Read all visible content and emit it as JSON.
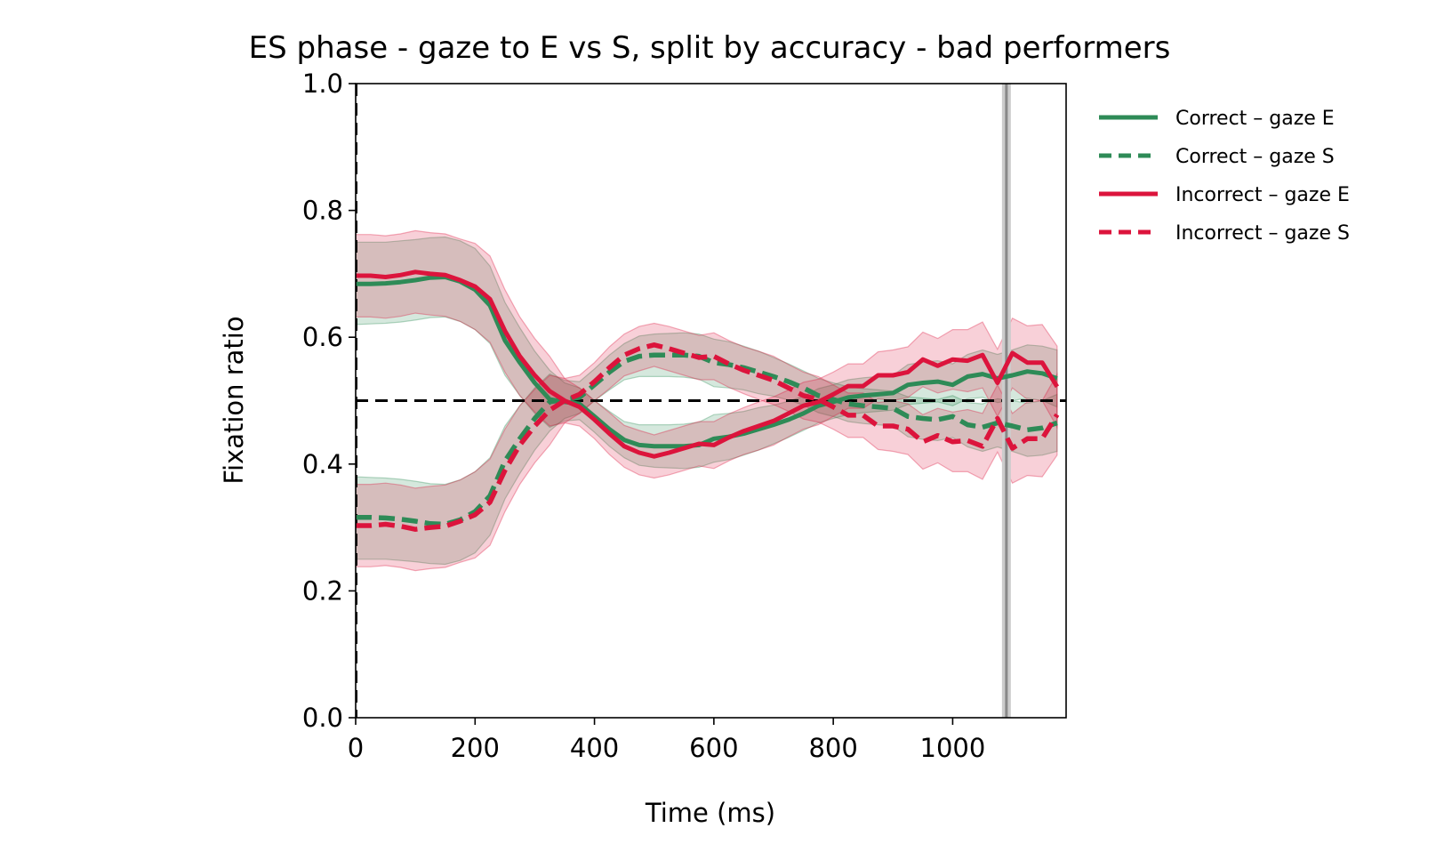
{
  "chart_data": {
    "type": "line",
    "title": "ES phase - gaze to E vs S, split by accuracy - bad performers",
    "xlabel": "Time (ms)",
    "ylabel": "Fixation ratio",
    "xlim": [
      0,
      1190
    ],
    "ylim": [
      0.0,
      1.0
    ],
    "xticks": [
      0,
      200,
      400,
      600,
      800,
      1000
    ],
    "xtick_labels": [
      "0",
      "200",
      "400",
      "600",
      "800",
      "1000"
    ],
    "yticks": [
      0.0,
      0.2,
      0.4,
      0.6,
      0.8,
      1.0
    ],
    "ytick_labels": [
      "0.0",
      "0.2",
      "0.4",
      "0.6",
      "0.8",
      "1.0"
    ],
    "grid": false,
    "legend_placement": "outside-right-top",
    "reference_lines": [
      {
        "orientation": "horizontal",
        "value": 0.5,
        "style": "dashed",
        "color": "#000000"
      },
      {
        "orientation": "vertical",
        "value": 0,
        "style": "dashed",
        "color": "#000000"
      },
      {
        "orientation": "vertical",
        "value": 1090,
        "style": "solid",
        "color": "#888888"
      }
    ],
    "x": [
      0,
      25,
      50,
      75,
      100,
      125,
      150,
      175,
      200,
      225,
      250,
      275,
      300,
      325,
      350,
      375,
      400,
      425,
      450,
      475,
      500,
      525,
      550,
      575,
      600,
      625,
      650,
      675,
      700,
      725,
      750,
      775,
      800,
      825,
      850,
      875,
      900,
      925,
      950,
      975,
      1000,
      1025,
      1050,
      1075,
      1100,
      1125,
      1150,
      1175
    ],
    "series": [
      {
        "name": "Correct – gaze E",
        "color": "#2e8b57",
        "dash": "solid",
        "values": [
          0.684,
          0.684,
          0.685,
          0.687,
          0.69,
          0.694,
          0.695,
          0.688,
          0.675,
          0.65,
          0.595,
          0.56,
          0.528,
          0.502,
          0.498,
          0.495,
          0.475,
          0.455,
          0.438,
          0.43,
          0.428,
          0.428,
          0.428,
          0.43,
          0.44,
          0.443,
          0.448,
          0.455,
          0.462,
          0.47,
          0.48,
          0.492,
          0.498,
          0.505,
          0.508,
          0.51,
          0.512,
          0.525,
          0.528,
          0.53,
          0.525,
          0.538,
          0.542,
          0.535,
          0.54,
          0.546,
          0.543,
          0.535
        ],
        "ci_low": [
          0.62,
          0.621,
          0.622,
          0.624,
          0.627,
          0.631,
          0.632,
          0.625,
          0.612,
          0.59,
          0.54,
          0.508,
          0.48,
          0.458,
          0.468,
          0.47,
          0.45,
          0.428,
          0.41,
          0.398,
          0.395,
          0.394,
          0.393,
          0.395,
          0.403,
          0.407,
          0.414,
          0.422,
          0.432,
          0.442,
          0.453,
          0.465,
          0.472,
          0.478,
          0.481,
          0.483,
          0.485,
          0.494,
          0.496,
          0.498,
          0.492,
          0.503,
          0.505,
          0.497,
          0.5,
          0.504,
          0.5,
          0.49
        ],
        "ci_high": [
          0.75,
          0.75,
          0.75,
          0.752,
          0.754,
          0.757,
          0.758,
          0.752,
          0.74,
          0.712,
          0.655,
          0.615,
          0.578,
          0.548,
          0.528,
          0.52,
          0.5,
          0.483,
          0.467,
          0.462,
          0.462,
          0.462,
          0.463,
          0.466,
          0.478,
          0.48,
          0.483,
          0.489,
          0.493,
          0.499,
          0.507,
          0.519,
          0.525,
          0.533,
          0.536,
          0.538,
          0.54,
          0.557,
          0.561,
          0.563,
          0.558,
          0.573,
          0.58,
          0.573,
          0.58,
          0.588,
          0.586,
          0.58
        ]
      },
      {
        "name": "Correct – gaze S",
        "color": "#2e8b57",
        "dash": "dashed",
        "values": [
          0.316,
          0.316,
          0.315,
          0.313,
          0.31,
          0.306,
          0.305,
          0.312,
          0.325,
          0.35,
          0.405,
          0.44,
          0.472,
          0.498,
          0.502,
          0.505,
          0.525,
          0.545,
          0.562,
          0.57,
          0.572,
          0.572,
          0.572,
          0.57,
          0.56,
          0.557,
          0.552,
          0.545,
          0.538,
          0.53,
          0.52,
          0.508,
          0.502,
          0.495,
          0.492,
          0.49,
          0.488,
          0.475,
          0.472,
          0.47,
          0.475,
          0.462,
          0.458,
          0.465,
          0.46,
          0.454,
          0.457,
          0.465
        ],
        "ci_low": [
          0.25,
          0.25,
          0.25,
          0.248,
          0.246,
          0.243,
          0.242,
          0.248,
          0.26,
          0.288,
          0.345,
          0.385,
          0.422,
          0.452,
          0.472,
          0.48,
          0.5,
          0.517,
          0.533,
          0.538,
          0.538,
          0.538,
          0.537,
          0.534,
          0.522,
          0.52,
          0.517,
          0.511,
          0.507,
          0.501,
          0.493,
          0.481,
          0.475,
          0.467,
          0.464,
          0.462,
          0.46,
          0.443,
          0.439,
          0.437,
          0.442,
          0.427,
          0.42,
          0.427,
          0.42,
          0.412,
          0.414,
          0.42
        ],
        "ci_high": [
          0.38,
          0.379,
          0.378,
          0.376,
          0.373,
          0.369,
          0.368,
          0.375,
          0.388,
          0.41,
          0.46,
          0.492,
          0.52,
          0.542,
          0.532,
          0.53,
          0.55,
          0.572,
          0.59,
          0.602,
          0.605,
          0.606,
          0.607,
          0.605,
          0.597,
          0.593,
          0.586,
          0.578,
          0.568,
          0.558,
          0.547,
          0.535,
          0.528,
          0.522,
          0.519,
          0.517,
          0.515,
          0.506,
          0.504,
          0.502,
          0.508,
          0.497,
          0.495,
          0.503,
          0.5,
          0.496,
          0.5,
          0.51
        ]
      },
      {
        "name": "Incorrect – gaze E",
        "color": "#dc143c",
        "dash": "solid",
        "values": [
          0.697,
          0.697,
          0.695,
          0.698,
          0.703,
          0.7,
          0.698,
          0.69,
          0.68,
          0.66,
          0.61,
          0.57,
          0.54,
          0.515,
          0.5,
          0.49,
          0.47,
          0.448,
          0.428,
          0.418,
          0.412,
          0.418,
          0.425,
          0.432,
          0.43,
          0.442,
          0.452,
          0.46,
          0.468,
          0.48,
          0.492,
          0.498,
          0.51,
          0.523,
          0.523,
          0.54,
          0.54,
          0.545,
          0.565,
          0.555,
          0.565,
          0.563,
          0.572,
          0.528,
          0.575,
          0.56,
          0.56,
          0.522
        ],
        "ci_low": [
          0.632,
          0.632,
          0.63,
          0.633,
          0.638,
          0.635,
          0.633,
          0.625,
          0.612,
          0.592,
          0.545,
          0.508,
          0.482,
          0.46,
          0.465,
          0.46,
          0.44,
          0.415,
          0.395,
          0.383,
          0.378,
          0.383,
          0.39,
          0.397,
          0.393,
          0.405,
          0.415,
          0.422,
          0.43,
          0.443,
          0.455,
          0.462,
          0.475,
          0.488,
          0.488,
          0.503,
          0.5,
          0.505,
          0.522,
          0.512,
          0.518,
          0.514,
          0.52,
          0.475,
          0.52,
          0.502,
          0.5,
          0.458
        ],
        "ci_high": [
          0.762,
          0.762,
          0.76,
          0.763,
          0.768,
          0.765,
          0.763,
          0.755,
          0.748,
          0.728,
          0.675,
          0.632,
          0.598,
          0.57,
          0.535,
          0.52,
          0.5,
          0.481,
          0.461,
          0.453,
          0.446,
          0.453,
          0.46,
          0.467,
          0.467,
          0.479,
          0.489,
          0.498,
          0.506,
          0.517,
          0.529,
          0.534,
          0.545,
          0.558,
          0.558,
          0.577,
          0.58,
          0.585,
          0.608,
          0.598,
          0.612,
          0.612,
          0.624,
          0.581,
          0.63,
          0.618,
          0.62,
          0.586
        ]
      },
      {
        "name": "Incorrect – gaze S",
        "color": "#dc143c",
        "dash": "dashed",
        "values": [
          0.303,
          0.303,
          0.305,
          0.302,
          0.297,
          0.3,
          0.302,
          0.31,
          0.32,
          0.34,
          0.39,
          0.43,
          0.46,
          0.485,
          0.5,
          0.51,
          0.53,
          0.552,
          0.572,
          0.582,
          0.588,
          0.582,
          0.575,
          0.568,
          0.57,
          0.558,
          0.548,
          0.54,
          0.532,
          0.52,
          0.508,
          0.502,
          0.49,
          0.477,
          0.477,
          0.46,
          0.46,
          0.455,
          0.435,
          0.445,
          0.435,
          0.437,
          0.428,
          0.472,
          0.425,
          0.44,
          0.44,
          0.478
        ],
        "ci_low": [
          0.238,
          0.238,
          0.24,
          0.237,
          0.232,
          0.235,
          0.237,
          0.245,
          0.252,
          0.272,
          0.325,
          0.368,
          0.402,
          0.43,
          0.465,
          0.48,
          0.5,
          0.519,
          0.539,
          0.547,
          0.554,
          0.547,
          0.54,
          0.533,
          0.533,
          0.521,
          0.511,
          0.502,
          0.494,
          0.483,
          0.471,
          0.466,
          0.455,
          0.442,
          0.442,
          0.423,
          0.42,
          0.415,
          0.392,
          0.402,
          0.388,
          0.388,
          0.376,
          0.419,
          0.37,
          0.382,
          0.38,
          0.414
        ],
        "ci_high": [
          0.368,
          0.368,
          0.37,
          0.367,
          0.362,
          0.365,
          0.367,
          0.375,
          0.388,
          0.408,
          0.455,
          0.492,
          0.518,
          0.54,
          0.535,
          0.54,
          0.56,
          0.585,
          0.605,
          0.617,
          0.622,
          0.617,
          0.61,
          0.603,
          0.607,
          0.595,
          0.585,
          0.578,
          0.57,
          0.557,
          0.545,
          0.538,
          0.525,
          0.512,
          0.512,
          0.497,
          0.5,
          0.495,
          0.478,
          0.488,
          0.482,
          0.486,
          0.48,
          0.525,
          0.48,
          0.498,
          0.5,
          0.542
        ]
      }
    ]
  }
}
